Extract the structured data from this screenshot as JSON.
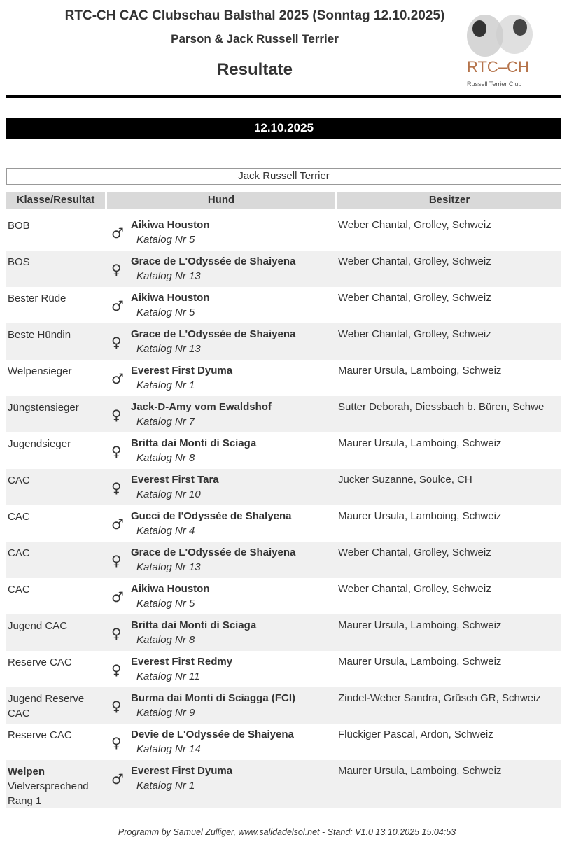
{
  "header": {
    "title": "RTC-CH CAC Clubschau Balsthal 2025 (Sonntag 12.10.2025)",
    "subtitle": "Parson & Jack Russell Terrier",
    "heading": "Resultate",
    "logo_text": "RTC–CH",
    "logo_subtext": "Russell Terrier Club"
  },
  "date": "12.10.2025",
  "breed": "Jack Russell Terrier",
  "columns": [
    "Klasse/Resultat",
    "Hund",
    "Besitzer"
  ],
  "rows": [
    {
      "klasse": "BOB",
      "sex": "male",
      "dog": "Aikiwa Houston",
      "katalog": "Katalog Nr 5",
      "owner": "Weber Chantal, Grolley, Schweiz"
    },
    {
      "klasse": "BOS",
      "sex": "female",
      "dog": "Grace de L'Odyssée de Shaiyena",
      "katalog": "Katalog Nr 13",
      "owner": "Weber Chantal, Grolley, Schweiz"
    },
    {
      "klasse": "Bester Rüde",
      "sex": "male",
      "dog": "Aikiwa Houston",
      "katalog": "Katalog Nr 5",
      "owner": "Weber Chantal, Grolley, Schweiz"
    },
    {
      "klasse": "Beste Hündin",
      "sex": "female",
      "dog": "Grace de L'Odyssée de Shaiyena",
      "katalog": "Katalog Nr 13",
      "owner": "Weber Chantal, Grolley, Schweiz"
    },
    {
      "klasse": "Welpensieger",
      "sex": "male",
      "dog": "Everest First Dyuma",
      "katalog": "Katalog Nr 1",
      "owner": "Maurer Ursula, Lamboing, Schweiz"
    },
    {
      "klasse": "Jüngstensieger",
      "sex": "female",
      "dog": "Jack-D-Amy vom Ewaldshof",
      "katalog": "Katalog Nr 7",
      "owner": "Sutter Deborah, Diessbach b. Büren, Schwe"
    },
    {
      "klasse": "Jugendsieger",
      "sex": "female",
      "dog": "Britta dai Monti di Sciaga",
      "katalog": "Katalog Nr 8",
      "owner": "Maurer Ursula, Lamboing, Schweiz"
    },
    {
      "klasse": "CAC",
      "sex": "female",
      "dog": "Everest First Tara",
      "katalog": "Katalog Nr 10",
      "owner": "Jucker Suzanne, Soulce, CH"
    },
    {
      "klasse": "CAC",
      "sex": "male",
      "dog": "Gucci de l'Odyssée de Shalyena",
      "katalog": "Katalog Nr 4",
      "owner": "Maurer Ursula, Lamboing, Schweiz"
    },
    {
      "klasse": "CAC",
      "sex": "female",
      "dog": "Grace de L'Odyssée de Shaiyena",
      "katalog": "Katalog Nr 13",
      "owner": "Weber Chantal, Grolley, Schweiz"
    },
    {
      "klasse": "CAC",
      "sex": "male",
      "dog": "Aikiwa Houston",
      "katalog": "Katalog Nr 5",
      "owner": "Weber Chantal, Grolley, Schweiz"
    },
    {
      "klasse": "Jugend CAC",
      "sex": "female",
      "dog": "Britta dai Monti di Sciaga",
      "katalog": "Katalog Nr 8",
      "owner": "Maurer Ursula, Lamboing, Schweiz"
    },
    {
      "klasse": "Reserve CAC",
      "sex": "female",
      "dog": "Everest First Redmy",
      "katalog": "Katalog Nr 11",
      "owner": "Maurer Ursula, Lamboing, Schweiz"
    },
    {
      "klasse": "Jugend Reserve CAC",
      "sex": "female",
      "dog": "Burma dai Monti di Sciagga (FCI)",
      "katalog": "Katalog Nr 9",
      "owner": "Zindel-Weber Sandra, Grüsch GR, Schweiz"
    },
    {
      "klasse": "Reserve CAC",
      "sex": "female",
      "dog": "Devie de L'Odyssée de Shaiyena",
      "katalog": "Katalog Nr 14",
      "owner": "Flückiger Pascal, Ardon, Schweiz"
    },
    {
      "klasse_bold": "Welpen",
      "klasse": "Vielversprechend Rang 1",
      "sex": "male",
      "dog": "Everest First Dyuma",
      "katalog": "Katalog Nr 1",
      "owner": "Maurer Ursula, Lamboing, Schweiz"
    }
  ],
  "footer": "Programm by Samuel Zulliger, www.salidadelsol.net   -   Stand: V1.0  13.10.2025 15:04:53"
}
